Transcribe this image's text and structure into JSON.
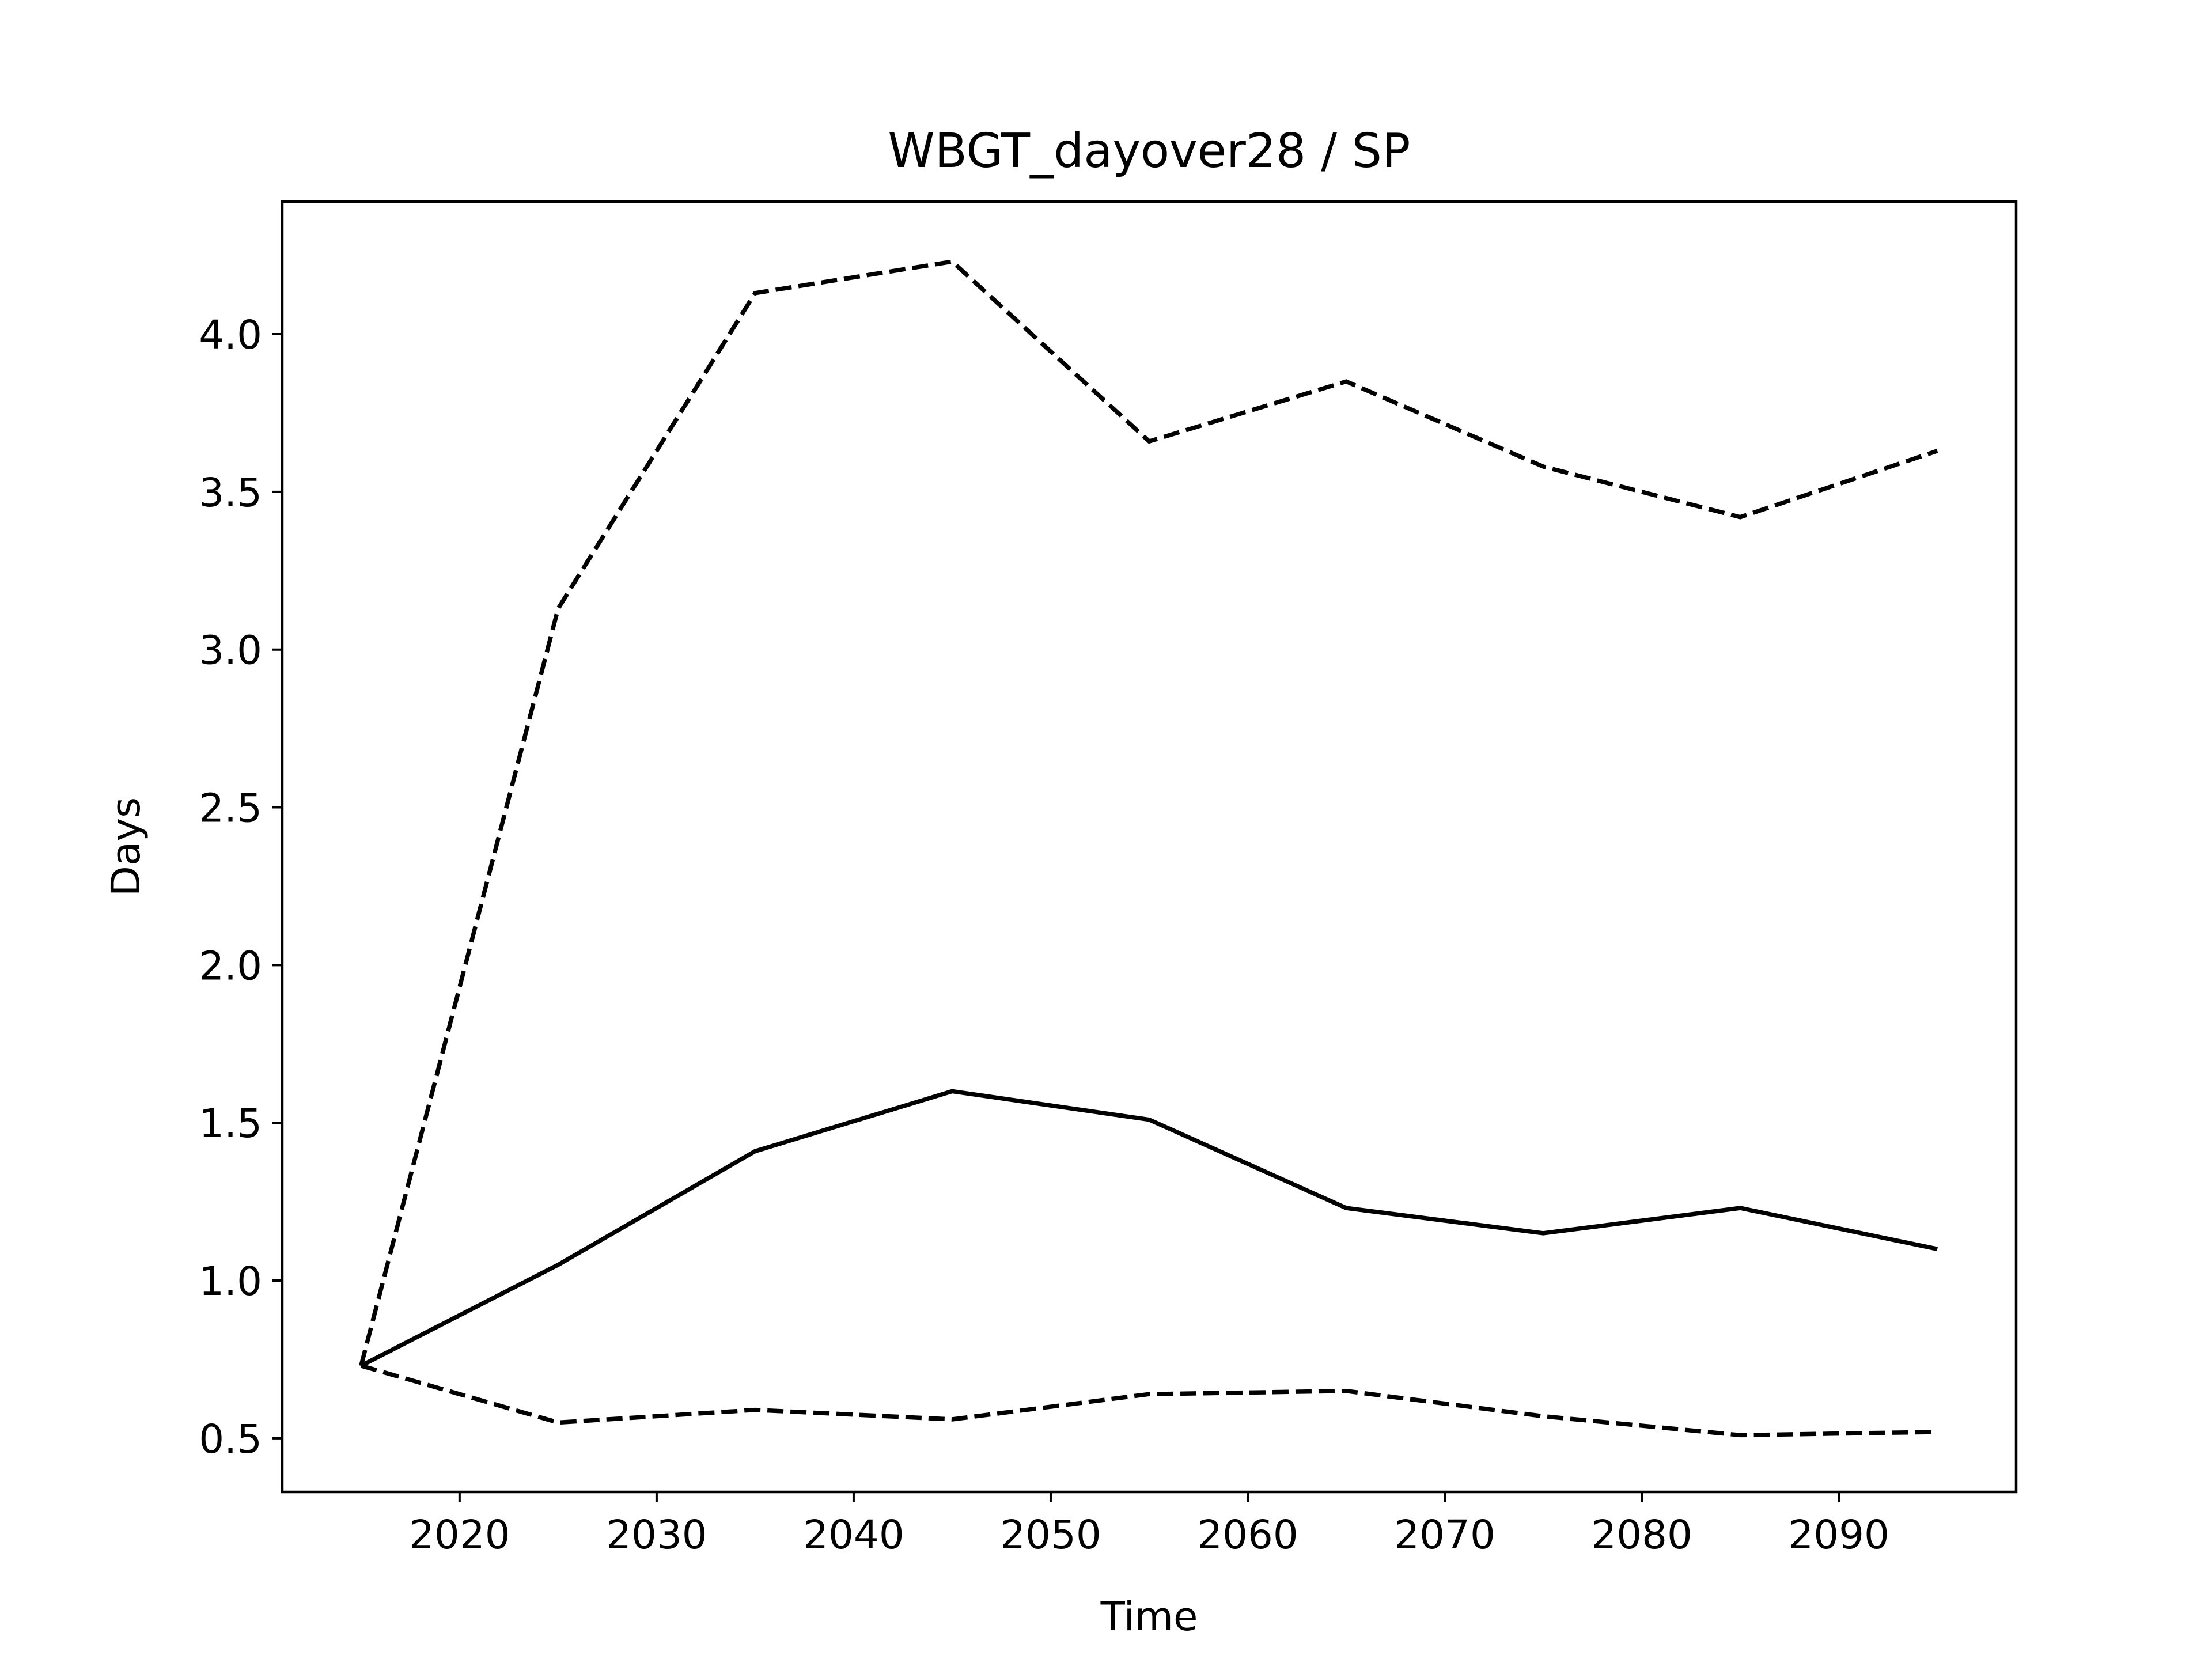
{
  "chart_data": {
    "type": "line",
    "title": "WBGT_dayover28 / SP",
    "xlabel": "Time",
    "ylabel": "Days",
    "x": [
      2015,
      2025,
      2035,
      2045,
      2055,
      2065,
      2075,
      2085,
      2095
    ],
    "xlim": [
      2011,
      2099
    ],
    "ylim": [
      0.33,
      4.42
    ],
    "xticks": [
      2020,
      2030,
      2040,
      2050,
      2060,
      2070,
      2080,
      2090
    ],
    "yticks": [
      0.5,
      1.0,
      1.5,
      2.0,
      2.5,
      3.0,
      3.5,
      4.0
    ],
    "xtick_labels": [
      "2020",
      "2030",
      "2040",
      "2050",
      "2060",
      "2070",
      "2080",
      "2090"
    ],
    "ytick_labels": [
      "0.5",
      "1.0",
      "1.5",
      "2.0",
      "2.5",
      "3.0",
      "3.5",
      "4.0"
    ],
    "grid": false,
    "legend": "none",
    "series": [
      {
        "style": "dashed",
        "color": "#000000",
        "values": [
          0.73,
          3.13,
          4.13,
          4.23,
          3.66,
          3.85,
          3.58,
          3.42,
          3.63
        ]
      },
      {
        "style": "solid",
        "color": "#000000",
        "values": [
          0.73,
          1.05,
          1.41,
          1.6,
          1.51,
          1.23,
          1.15,
          1.23,
          1.1
        ]
      },
      {
        "style": "dashed",
        "color": "#000000",
        "values": [
          0.73,
          0.55,
          0.59,
          0.56,
          0.64,
          0.65,
          0.57,
          0.51,
          0.52
        ]
      }
    ]
  }
}
